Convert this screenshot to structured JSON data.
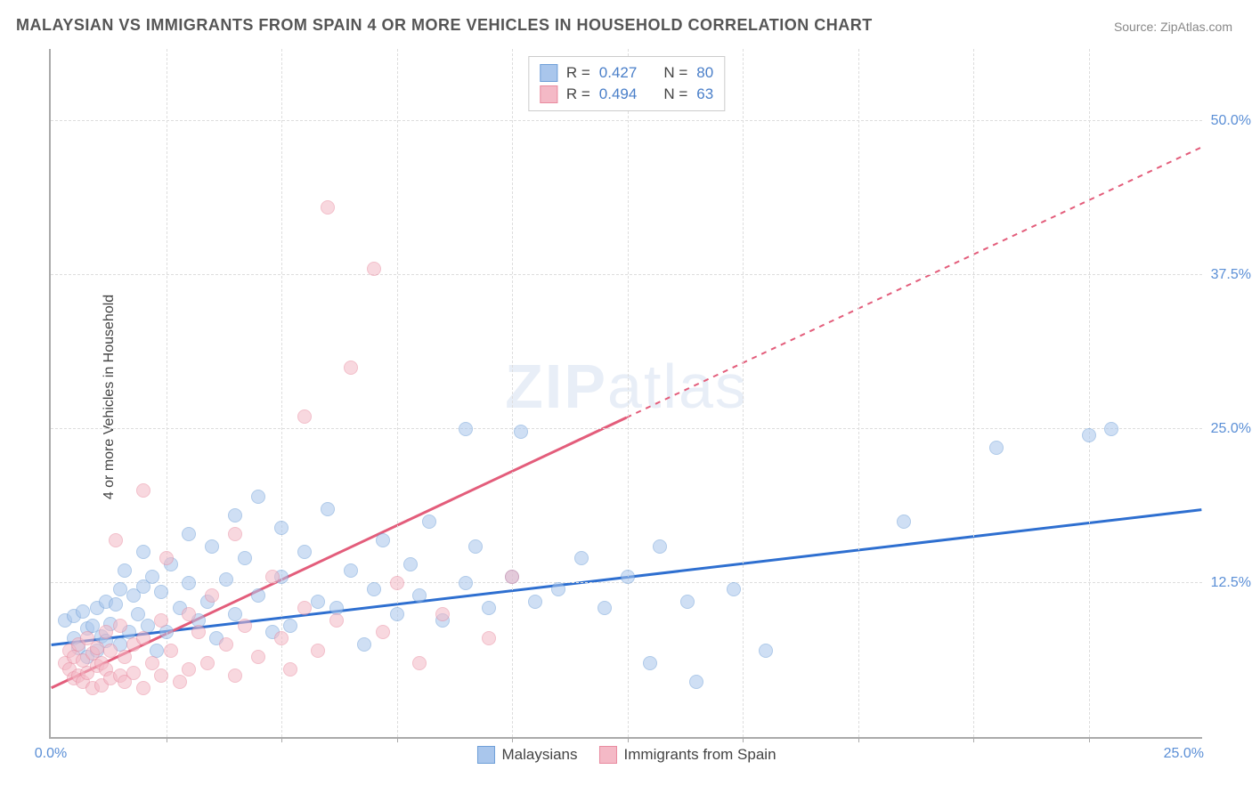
{
  "title": "MALAYSIAN VS IMMIGRANTS FROM SPAIN 4 OR MORE VEHICLES IN HOUSEHOLD CORRELATION CHART",
  "source_label": "Source: ",
  "source_name": "ZipAtlas.com",
  "ylabel": "4 or more Vehicles in Household",
  "watermark_a": "ZIP",
  "watermark_b": "atlas",
  "chart": {
    "type": "scatter",
    "background_color": "#ffffff",
    "grid_color": "#dddddd",
    "axis_color": "#aaaaaa",
    "tick_label_color": "#5b8fd6",
    "xlim": [
      0,
      25
    ],
    "ylim": [
      0,
      56
    ],
    "xticks": [
      0,
      25
    ],
    "xtick_labels": [
      "0.0%",
      "25.0%"
    ],
    "xtick_minor": [
      2.5,
      5,
      7.5,
      10,
      12.5,
      15,
      17.5,
      20,
      22.5
    ],
    "yticks": [
      12.5,
      25,
      37.5,
      50
    ],
    "ytick_labels": [
      "12.5%",
      "25.0%",
      "37.5%",
      "50.0%"
    ],
    "marker_size": 16,
    "marker_opacity": 0.55,
    "label_fontsize": 16,
    "title_fontsize": 18
  },
  "series": [
    {
      "key": "malaysians",
      "label": "Malaysians",
      "fill": "#a9c6ec",
      "stroke": "#6f9fd8",
      "line_color": "#2e6fd0",
      "r": 0.427,
      "n": 80,
      "trend": {
        "x1": 0,
        "y1": 7.5,
        "x2": 25,
        "y2": 18.5,
        "solid_until": 25
      },
      "points": [
        [
          0.3,
          9.5
        ],
        [
          0.5,
          8.0
        ],
        [
          0.5,
          9.8
        ],
        [
          0.6,
          7.2
        ],
        [
          0.7,
          10.2
        ],
        [
          0.8,
          6.5
        ],
        [
          0.8,
          8.8
        ],
        [
          0.9,
          9.0
        ],
        [
          1.0,
          7.0
        ],
        [
          1.0,
          10.5
        ],
        [
          1.1,
          8.2
        ],
        [
          1.2,
          11.0
        ],
        [
          1.2,
          7.8
        ],
        [
          1.3,
          9.2
        ],
        [
          1.4,
          10.8
        ],
        [
          1.5,
          12.0
        ],
        [
          1.5,
          7.5
        ],
        [
          1.6,
          13.5
        ],
        [
          1.7,
          8.5
        ],
        [
          1.8,
          11.5
        ],
        [
          1.9,
          10.0
        ],
        [
          2.0,
          12.2
        ],
        [
          2.0,
          15.0
        ],
        [
          2.1,
          9.0
        ],
        [
          2.2,
          13.0
        ],
        [
          2.3,
          7.0
        ],
        [
          2.4,
          11.8
        ],
        [
          2.5,
          8.5
        ],
        [
          2.6,
          14.0
        ],
        [
          2.8,
          10.5
        ],
        [
          3.0,
          12.5
        ],
        [
          3.0,
          16.5
        ],
        [
          3.2,
          9.5
        ],
        [
          3.4,
          11.0
        ],
        [
          3.5,
          15.5
        ],
        [
          3.6,
          8.0
        ],
        [
          3.8,
          12.8
        ],
        [
          4.0,
          18.0
        ],
        [
          4.0,
          10.0
        ],
        [
          4.2,
          14.5
        ],
        [
          4.5,
          11.5
        ],
        [
          4.5,
          19.5
        ],
        [
          4.8,
          8.5
        ],
        [
          5.0,
          13.0
        ],
        [
          5.0,
          17.0
        ],
        [
          5.2,
          9.0
        ],
        [
          5.5,
          15.0
        ],
        [
          5.8,
          11.0
        ],
        [
          6.0,
          18.5
        ],
        [
          6.2,
          10.5
        ],
        [
          6.5,
          13.5
        ],
        [
          6.8,
          7.5
        ],
        [
          7.0,
          12.0
        ],
        [
          7.2,
          16.0
        ],
        [
          7.5,
          10.0
        ],
        [
          7.8,
          14.0
        ],
        [
          8.0,
          11.5
        ],
        [
          8.2,
          17.5
        ],
        [
          8.5,
          9.5
        ],
        [
          9.0,
          12.5
        ],
        [
          9.0,
          25.0
        ],
        [
          9.2,
          15.5
        ],
        [
          9.5,
          10.5
        ],
        [
          10.0,
          13.0
        ],
        [
          10.2,
          24.8
        ],
        [
          10.5,
          11.0
        ],
        [
          11.0,
          12.0
        ],
        [
          11.5,
          14.5
        ],
        [
          12.0,
          10.5
        ],
        [
          12.5,
          13.0
        ],
        [
          13.0,
          6.0
        ],
        [
          13.2,
          15.5
        ],
        [
          13.8,
          11.0
        ],
        [
          14.0,
          4.5
        ],
        [
          14.8,
          12.0
        ],
        [
          15.5,
          7.0
        ],
        [
          18.5,
          17.5
        ],
        [
          20.5,
          23.5
        ],
        [
          22.5,
          24.5
        ],
        [
          23.0,
          25.0
        ]
      ]
    },
    {
      "key": "spain",
      "label": "Immigrants from Spain",
      "fill": "#f4b9c6",
      "stroke": "#e98ba0",
      "line_color": "#e35d7b",
      "r": 0.494,
      "n": 63,
      "trend": {
        "x1": 0,
        "y1": 4.0,
        "x2": 25,
        "y2": 48.0,
        "solid_until": 12.5
      },
      "points": [
        [
          0.3,
          6.0
        ],
        [
          0.4,
          5.5
        ],
        [
          0.4,
          7.0
        ],
        [
          0.5,
          4.8
        ],
        [
          0.5,
          6.5
        ],
        [
          0.6,
          5.0
        ],
        [
          0.6,
          7.5
        ],
        [
          0.7,
          4.5
        ],
        [
          0.7,
          6.2
        ],
        [
          0.8,
          5.2
        ],
        [
          0.8,
          8.0
        ],
        [
          0.9,
          4.0
        ],
        [
          0.9,
          6.8
        ],
        [
          1.0,
          5.8
        ],
        [
          1.0,
          7.2
        ],
        [
          1.1,
          4.2
        ],
        [
          1.1,
          6.0
        ],
        [
          1.2,
          5.5
        ],
        [
          1.2,
          8.5
        ],
        [
          1.3,
          4.8
        ],
        [
          1.3,
          7.0
        ],
        [
          1.4,
          16.0
        ],
        [
          1.5,
          5.0
        ],
        [
          1.5,
          9.0
        ],
        [
          1.6,
          6.5
        ],
        [
          1.6,
          4.5
        ],
        [
          1.8,
          7.5
        ],
        [
          1.8,
          5.2
        ],
        [
          2.0,
          8.0
        ],
        [
          2.0,
          4.0
        ],
        [
          2.0,
          20.0
        ],
        [
          2.2,
          6.0
        ],
        [
          2.4,
          9.5
        ],
        [
          2.4,
          5.0
        ],
        [
          2.5,
          14.5
        ],
        [
          2.6,
          7.0
        ],
        [
          2.8,
          4.5
        ],
        [
          3.0,
          10.0
        ],
        [
          3.0,
          5.5
        ],
        [
          3.2,
          8.5
        ],
        [
          3.4,
          6.0
        ],
        [
          3.5,
          11.5
        ],
        [
          3.8,
          7.5
        ],
        [
          4.0,
          16.5
        ],
        [
          4.0,
          5.0
        ],
        [
          4.2,
          9.0
        ],
        [
          4.5,
          6.5
        ],
        [
          4.8,
          13.0
        ],
        [
          5.0,
          8.0
        ],
        [
          5.2,
          5.5
        ],
        [
          5.5,
          10.5
        ],
        [
          5.8,
          7.0
        ],
        [
          5.5,
          26.0
        ],
        [
          6.0,
          43.0
        ],
        [
          6.2,
          9.5
        ],
        [
          6.5,
          30.0
        ],
        [
          7.0,
          38.0
        ],
        [
          7.2,
          8.5
        ],
        [
          7.5,
          12.5
        ],
        [
          8.0,
          6.0
        ],
        [
          8.5,
          10.0
        ],
        [
          9.5,
          8.0
        ],
        [
          10.0,
          13.0
        ]
      ]
    }
  ],
  "legend_top": {
    "r_label": "R =",
    "n_label": "N ="
  },
  "legend_bottom": {}
}
